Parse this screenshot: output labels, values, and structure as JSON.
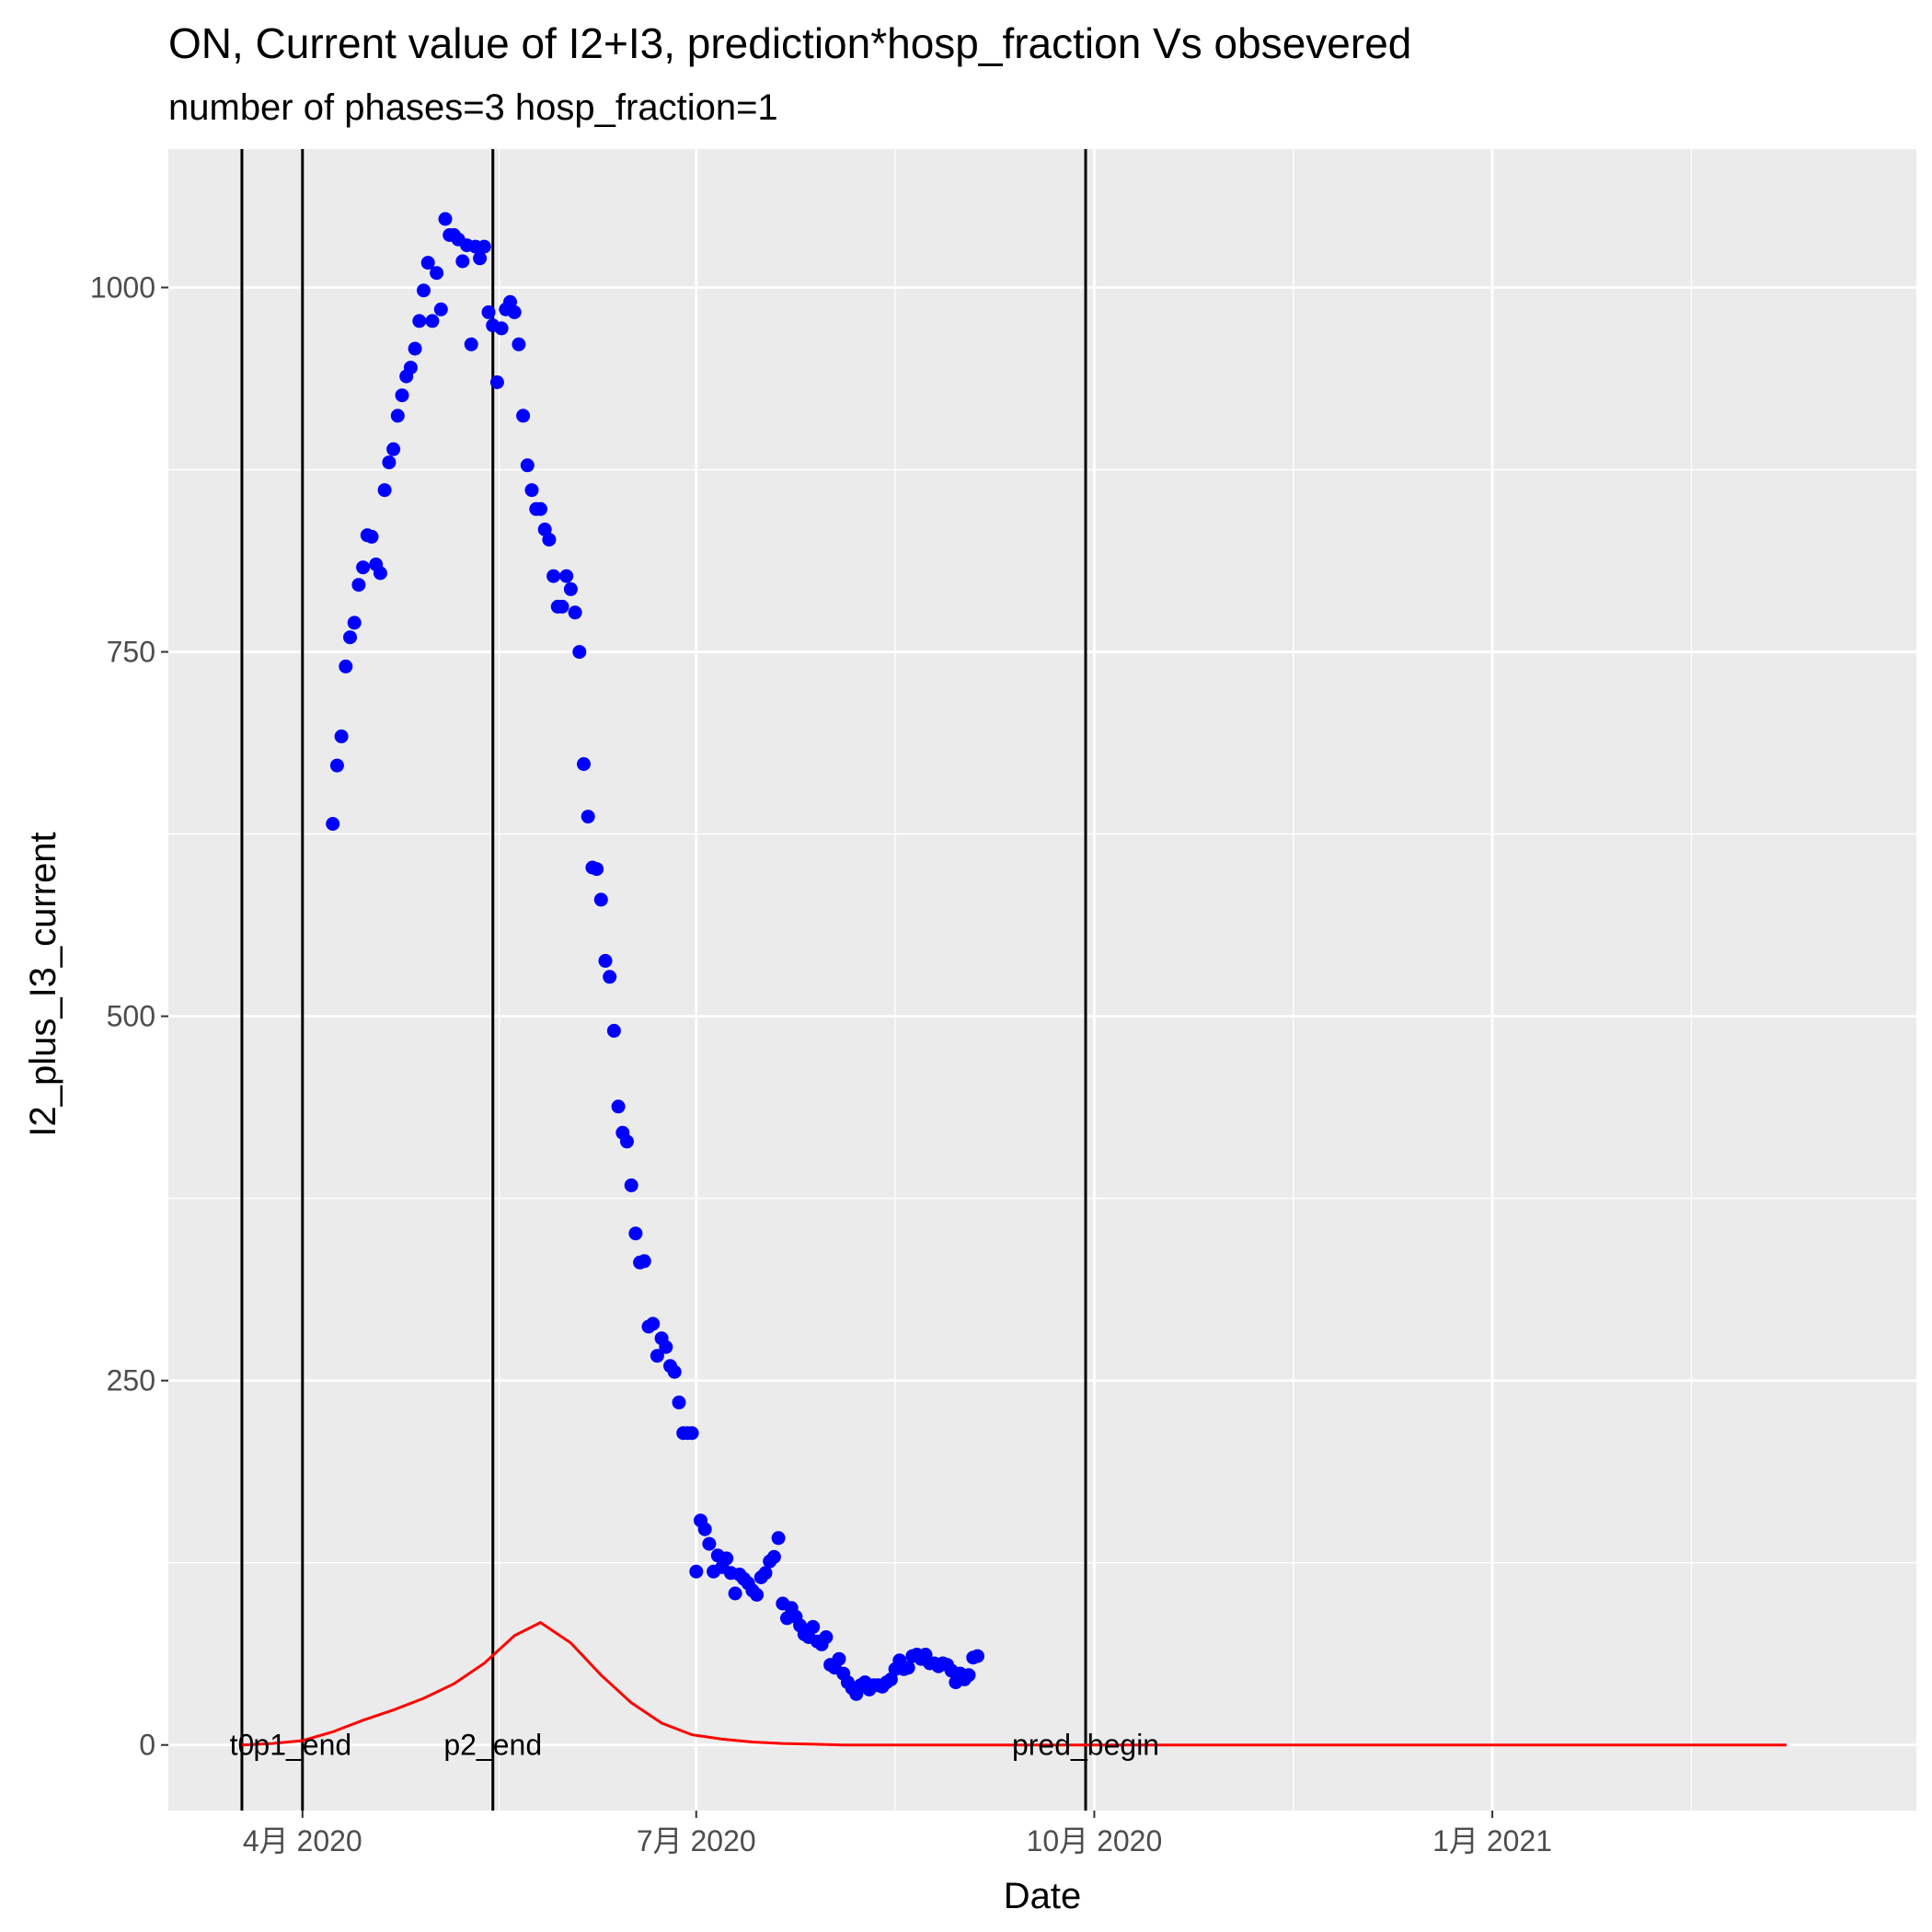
{
  "chart_data": {
    "type": "scatter",
    "title": "ON, Current value of I2+I3, prediction*hosp_fraction Vs obsevered",
    "subtitle": "number of phases=3   hosp_fraction=1",
    "xlabel": "Date",
    "ylabel": "I2_plus_I3_current",
    "xlim": [
      "2020-03-01",
      "2021-04-09"
    ],
    "ylim": [
      -45,
      1095
    ],
    "y_ticks": [
      0,
      250,
      500,
      750,
      1000
    ],
    "y_tick_labels": [
      "0",
      "250",
      "500",
      "750",
      "1000"
    ],
    "x_ticks": [
      "2020-04-01",
      "2020-07-01",
      "2020-10-01",
      "2021-01-01"
    ],
    "x_tick_labels": [
      "4月 2020",
      "7月 2020",
      "10月 2020",
      "1月 2021"
    ],
    "grid": true,
    "background": "#ebebeb",
    "colors": {
      "observed": "#0000ff",
      "prediction": "#ff0000",
      "vlines": "#000000"
    },
    "vlines": [
      {
        "label": "t0",
        "date": "2020-03-18"
      },
      {
        "label": "p1_end",
        "date": "2020-04-01"
      },
      {
        "label": "p2_end",
        "date": "2020-05-15"
      },
      {
        "label": "pred_begin",
        "date": "2020-09-29"
      }
    ],
    "series": [
      {
        "kind": "points",
        "start_date": "2020-04-08",
        "values": [
          632,
          672,
          692,
          740,
          760,
          770,
          796,
          808,
          830,
          829,
          810,
          804,
          861,
          880,
          889,
          912,
          926,
          939,
          945,
          958,
          977,
          998,
          1017,
          977,
          1010,
          985,
          1047,
          1036,
          1036,
          1033,
          1018,
          1029,
          961,
          1028,
          1020,
          1028,
          983,
          974,
          935,
          972,
          985,
          990,
          983,
          961,
          912,
          878,
          861,
          848,
          848,
          834,
          827,
          802,
          781,
          781,
          802,
          793,
          777,
          750,
          673,
          637,
          602,
          601,
          580,
          538,
          527,
          490,
          438,
          420,
          414,
          384,
          351,
          331,
          332,
          287,
          289,
          267,
          279,
          273,
          260,
          256,
          235,
          214,
          214,
          214,
          119,
          154,
          148,
          138,
          119,
          130,
          122,
          128,
          118,
          104,
          117,
          114,
          111,
          106,
          103,
          115,
          118,
          126,
          129,
          142,
          97,
          87,
          94,
          88,
          82,
          76,
          74,
          81,
          71,
          69,
          74,
          55,
          53,
          59,
          49,
          43,
          39,
          35,
          41,
          43,
          38,
          41,
          41,
          40,
          43,
          45,
          52,
          58,
          52,
          53,
          61,
          62,
          59,
          62,
          56,
          56,
          54,
          56,
          55,
          51,
          43,
          49,
          45,
          48,
          60,
          61
        ]
      },
      {
        "kind": "line",
        "points": [
          [
            "2020-03-18",
            0
          ],
          [
            "2020-03-25",
            1
          ],
          [
            "2020-04-01",
            3
          ],
          [
            "2020-04-08",
            9
          ],
          [
            "2020-04-15",
            17
          ],
          [
            "2020-04-22",
            24
          ],
          [
            "2020-04-29",
            32
          ],
          [
            "2020-05-06",
            42
          ],
          [
            "2020-05-13",
            56
          ],
          [
            "2020-05-20",
            75
          ],
          [
            "2020-05-26",
            84
          ],
          [
            "2020-06-02",
            70
          ],
          [
            "2020-06-09",
            48
          ],
          [
            "2020-06-16",
            29
          ],
          [
            "2020-06-23",
            15
          ],
          [
            "2020-06-30",
            7
          ],
          [
            "2020-07-07",
            4
          ],
          [
            "2020-07-14",
            2
          ],
          [
            "2020-07-21",
            1
          ],
          [
            "2020-08-04",
            0
          ],
          [
            "2020-09-01",
            0
          ],
          [
            "2020-12-01",
            0
          ],
          [
            "2021-03-10",
            0
          ]
        ]
      }
    ]
  }
}
